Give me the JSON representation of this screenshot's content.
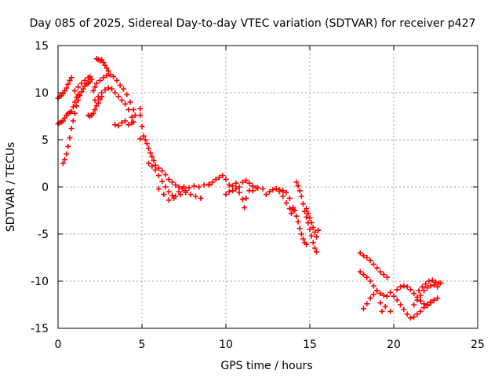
{
  "chart_data": {
    "type": "scatter",
    "title": "Day 085 of 2025, Sidereal Day-to-day VTEC variation (SDTVAR) for receiver p427",
    "xlabel": "GPS time / hours",
    "ylabel": "SDTVAR / TECUs",
    "xlim": [
      0,
      25
    ],
    "ylim": [
      -15,
      15
    ],
    "xticks": [
      0,
      5,
      10,
      15,
      20,
      25
    ],
    "yticks": [
      -15,
      -10,
      -5,
      0,
      5,
      10,
      15
    ],
    "xtick_labels": [
      "0",
      "5",
      "10",
      "15",
      "20",
      "25"
    ],
    "ytick_labels": [
      "-15",
      "-10",
      "-5",
      "0",
      "5",
      "10",
      "15"
    ],
    "grid": true,
    "marker": "plus",
    "series": [
      {
        "name": "SDTVAR",
        "color": "#ff0000",
        "points": [
          [
            0.0,
            9.4
          ],
          [
            0.1,
            9.6
          ],
          [
            0.2,
            9.7
          ],
          [
            0.3,
            9.9
          ],
          [
            0.4,
            10.2
          ],
          [
            0.5,
            10.5
          ],
          [
            0.6,
            10.9
          ],
          [
            0.7,
            11.3
          ],
          [
            0.8,
            11.6
          ],
          [
            0.0,
            6.7
          ],
          [
            0.1,
            6.8
          ],
          [
            0.2,
            6.9
          ],
          [
            0.3,
            7.0
          ],
          [
            0.4,
            7.3
          ],
          [
            0.5,
            7.6
          ],
          [
            0.6,
            7.8
          ],
          [
            0.7,
            7.9
          ],
          [
            0.8,
            8.0
          ],
          [
            0.9,
            8.5
          ],
          [
            1.0,
            9.0
          ],
          [
            1.1,
            9.5
          ],
          [
            1.2,
            9.8
          ],
          [
            0.3,
            2.5
          ],
          [
            0.4,
            2.9
          ],
          [
            0.5,
            3.5
          ],
          [
            0.6,
            4.3
          ],
          [
            0.7,
            5.2
          ],
          [
            0.8,
            6.2
          ],
          [
            0.9,
            7.0
          ],
          [
            1.0,
            7.8
          ],
          [
            1.1,
            8.6
          ],
          [
            1.2,
            9.2
          ],
          [
            1.3,
            9.7
          ],
          [
            1.4,
            10.1
          ],
          [
            1.5,
            10.4
          ],
          [
            1.6,
            10.7
          ],
          [
            1.7,
            10.9
          ],
          [
            1.8,
            11.0
          ],
          [
            1.9,
            11.2
          ],
          [
            2.0,
            11.4
          ],
          [
            1.0,
            10.2
          ],
          [
            1.2,
            10.6
          ],
          [
            1.4,
            11.0
          ],
          [
            1.6,
            11.3
          ],
          [
            1.8,
            11.6
          ],
          [
            1.9,
            11.7
          ],
          [
            1.8,
            7.6
          ],
          [
            1.9,
            7.5
          ],
          [
            2.0,
            7.6
          ],
          [
            2.1,
            7.8
          ],
          [
            2.2,
            8.2
          ],
          [
            2.3,
            8.6
          ],
          [
            2.4,
            8.9
          ],
          [
            2.5,
            9.3
          ],
          [
            2.6,
            9.6
          ],
          [
            2.1,
            10.2
          ],
          [
            2.2,
            10.6
          ],
          [
            2.3,
            11.0
          ],
          [
            2.5,
            11.3
          ],
          [
            2.7,
            11.6
          ],
          [
            2.9,
            11.8
          ],
          [
            3.1,
            11.9
          ],
          [
            3.3,
            11.7
          ],
          [
            3.5,
            11.3
          ],
          [
            3.7,
            10.8
          ],
          [
            3.9,
            10.4
          ],
          [
            4.1,
            9.8
          ],
          [
            4.3,
            9.0
          ],
          [
            4.5,
            8.2
          ],
          [
            4.6,
            7.6
          ],
          [
            2.2,
            9.2
          ],
          [
            2.4,
            9.6
          ],
          [
            2.6,
            10.0
          ],
          [
            2.8,
            10.3
          ],
          [
            3.0,
            10.5
          ],
          [
            3.2,
            10.4
          ],
          [
            3.4,
            10.0
          ],
          [
            3.6,
            9.6
          ],
          [
            3.8,
            9.2
          ],
          [
            4.0,
            8.8
          ],
          [
            4.2,
            8.2
          ],
          [
            4.4,
            7.4
          ],
          [
            4.5,
            6.9
          ],
          [
            2.3,
            13.6
          ],
          [
            2.4,
            13.5
          ],
          [
            2.5,
            13.4
          ],
          [
            2.6,
            13.5
          ],
          [
            2.7,
            13.2
          ],
          [
            2.8,
            12.9
          ],
          [
            2.9,
            12.6
          ],
          [
            3.0,
            12.3
          ],
          [
            3.4,
            6.6
          ],
          [
            3.6,
            6.5
          ],
          [
            3.8,
            6.8
          ],
          [
            4.0,
            7.0
          ],
          [
            4.2,
            6.6
          ],
          [
            4.4,
            6.8
          ],
          [
            4.9,
            8.3
          ],
          [
            4.9,
            7.6
          ],
          [
            5.0,
            6.4
          ],
          [
            4.9,
            5.1
          ],
          [
            5.1,
            5.4
          ],
          [
            5.2,
            5.0
          ],
          [
            5.3,
            4.6
          ],
          [
            5.4,
            4.1
          ],
          [
            5.5,
            3.6
          ],
          [
            5.6,
            3.2
          ],
          [
            5.7,
            2.8
          ],
          [
            5.8,
            2.3
          ],
          [
            6.0,
            2.0
          ],
          [
            6.2,
            1.7
          ],
          [
            6.4,
            1.3
          ],
          [
            6.6,
            0.8
          ],
          [
            6.8,
            0.5
          ],
          [
            7.0,
            0.2
          ],
          [
            7.2,
            0.0
          ],
          [
            7.4,
            -0.2
          ],
          [
            7.6,
            -0.4
          ],
          [
            5.4,
            2.5
          ],
          [
            5.6,
            2.2
          ],
          [
            5.8,
            1.8
          ],
          [
            6.0,
            1.2
          ],
          [
            6.2,
            0.6
          ],
          [
            6.4,
            0.0
          ],
          [
            6.6,
            -0.5
          ],
          [
            6.8,
            -0.9
          ],
          [
            7.0,
            -1.0
          ],
          [
            7.3,
            -0.8
          ],
          [
            7.6,
            -0.6
          ],
          [
            7.9,
            -0.8
          ],
          [
            8.2,
            -1.0
          ],
          [
            8.5,
            -1.2
          ],
          [
            6.0,
            -0.2
          ],
          [
            6.3,
            -0.8
          ],
          [
            6.6,
            -1.4
          ],
          [
            6.9,
            -1.2
          ],
          [
            7.2,
            -0.5
          ],
          [
            7.5,
            0.0
          ],
          [
            7.8,
            -0.1
          ],
          [
            8.1,
            0.1
          ],
          [
            8.4,
            0.0
          ],
          [
            8.7,
            0.2
          ],
          [
            9.0,
            0.3
          ],
          [
            9.0,
            0.2
          ],
          [
            9.2,
            0.5
          ],
          [
            9.4,
            0.8
          ],
          [
            9.6,
            1.0
          ],
          [
            9.8,
            1.2
          ],
          [
            10.0,
            0.8
          ],
          [
            10.2,
            0.2
          ],
          [
            10.4,
            -0.4
          ],
          [
            10.6,
            -0.2
          ],
          [
            10.8,
            0.0
          ],
          [
            11.0,
            0.5
          ],
          [
            11.2,
            0.7
          ],
          [
            11.4,
            0.4
          ],
          [
            11.6,
            0.1
          ],
          [
            11.8,
            -0.1
          ],
          [
            10.0,
            -0.8
          ],
          [
            10.2,
            -0.5
          ],
          [
            10.4,
            0.1
          ],
          [
            10.6,
            0.4
          ],
          [
            10.8,
            -0.6
          ],
          [
            11.0,
            -1.3
          ],
          [
            11.1,
            -2.2
          ],
          [
            11.2,
            -1.2
          ],
          [
            11.4,
            -0.4
          ],
          [
            11.6,
            -0.4
          ],
          [
            11.9,
            -0.1
          ],
          [
            12.2,
            -0.2
          ],
          [
            12.4,
            -0.8
          ],
          [
            12.6,
            -0.5
          ],
          [
            12.8,
            -0.3
          ],
          [
            13.0,
            -0.2
          ],
          [
            13.2,
            -0.3
          ],
          [
            13.4,
            -0.4
          ],
          [
            13.6,
            -0.6
          ],
          [
            13.8,
            -1.2
          ],
          [
            13.2,
            -0.5
          ],
          [
            13.4,
            -1.0
          ],
          [
            13.6,
            -1.7
          ],
          [
            13.8,
            -2.3
          ],
          [
            13.9,
            -2.8
          ],
          [
            14.0,
            -2.4
          ],
          [
            14.2,
            0.5
          ],
          [
            14.3,
            0.1
          ],
          [
            14.4,
            -0.4
          ],
          [
            14.5,
            -1.0
          ],
          [
            14.6,
            -1.8
          ],
          [
            14.7,
            -2.6
          ],
          [
            14.8,
            -3.2
          ],
          [
            14.9,
            -3.8
          ],
          [
            15.0,
            -4.5
          ],
          [
            15.1,
            -5.2
          ],
          [
            15.2,
            -5.9
          ],
          [
            15.3,
            -6.5
          ],
          [
            15.4,
            -6.9
          ],
          [
            14.0,
            -2.2
          ],
          [
            14.1,
            -2.5
          ],
          [
            14.2,
            -3.1
          ],
          [
            14.3,
            -3.7
          ],
          [
            14.4,
            -4.4
          ],
          [
            14.5,
            -5.0
          ],
          [
            14.6,
            -5.5
          ],
          [
            14.7,
            -5.9
          ],
          [
            14.8,
            -6.1
          ],
          [
            14.8,
            -2.3
          ],
          [
            14.9,
            -2.8
          ],
          [
            15.0,
            -3.3
          ],
          [
            15.1,
            -3.8
          ],
          [
            15.2,
            -4.3
          ],
          [
            15.3,
            -4.8
          ],
          [
            15.4,
            -5.3
          ],
          [
            15.5,
            -4.6
          ],
          [
            18.0,
            -7.0
          ],
          [
            18.2,
            -7.3
          ],
          [
            18.4,
            -7.5
          ],
          [
            18.6,
            -7.8
          ],
          [
            18.8,
            -8.2
          ],
          [
            19.0,
            -8.6
          ],
          [
            19.2,
            -9.0
          ],
          [
            19.4,
            -9.3
          ],
          [
            19.6,
            -9.6
          ],
          [
            18.0,
            -9.0
          ],
          [
            18.2,
            -9.3
          ],
          [
            18.4,
            -9.6
          ],
          [
            18.6,
            -10.0
          ],
          [
            18.8,
            -10.5
          ],
          [
            19.0,
            -11.0
          ],
          [
            19.2,
            -11.3
          ],
          [
            19.4,
            -11.5
          ],
          [
            18.2,
            -12.9
          ],
          [
            18.4,
            -12.4
          ],
          [
            18.6,
            -11.8
          ],
          [
            18.8,
            -11.4
          ],
          [
            19.0,
            -11.0
          ],
          [
            19.2,
            -12.3
          ],
          [
            19.5,
            -12.7
          ],
          [
            19.8,
            -13.2
          ],
          [
            19.3,
            -13.2
          ],
          [
            19.6,
            -11.6
          ],
          [
            19.8,
            -11.2
          ],
          [
            20.0,
            -11.6
          ],
          [
            20.2,
            -12.0
          ],
          [
            20.4,
            -12.5
          ],
          [
            20.6,
            -13.0
          ],
          [
            20.8,
            -13.5
          ],
          [
            21.0,
            -13.9
          ],
          [
            21.2,
            -13.8
          ],
          [
            21.4,
            -13.5
          ],
          [
            21.6,
            -13.2
          ],
          [
            21.8,
            -12.8
          ],
          [
            22.0,
            -12.5
          ],
          [
            22.2,
            -12.2
          ],
          [
            22.4,
            -12.0
          ],
          [
            22.6,
            -11.8
          ],
          [
            20.8,
            -10.6
          ],
          [
            21.0,
            -10.9
          ],
          [
            21.2,
            -11.3
          ],
          [
            21.4,
            -11.7
          ],
          [
            21.6,
            -12.1
          ],
          [
            21.8,
            -12.4
          ],
          [
            22.0,
            -12.6
          ],
          [
            22.2,
            -12.3
          ],
          [
            22.4,
            -12.0
          ],
          [
            21.5,
            -11.0
          ],
          [
            21.7,
            -10.6
          ],
          [
            21.9,
            -10.3
          ],
          [
            22.1,
            -10.0
          ],
          [
            22.3,
            -9.9
          ],
          [
            22.5,
            -10.1
          ],
          [
            22.7,
            -10.2
          ],
          [
            21.2,
            -12.5
          ],
          [
            21.4,
            -12.0
          ],
          [
            21.6,
            -11.5
          ],
          [
            21.8,
            -11.0
          ],
          [
            22.0,
            -10.7
          ],
          [
            22.2,
            -10.5
          ],
          [
            22.4,
            -10.4
          ],
          [
            22.6,
            -10.6
          ],
          [
            22.8,
            -10.2
          ],
          [
            20.2,
            -10.9
          ],
          [
            20.4,
            -10.6
          ],
          [
            20.6,
            -10.5
          ]
        ]
      }
    ]
  }
}
